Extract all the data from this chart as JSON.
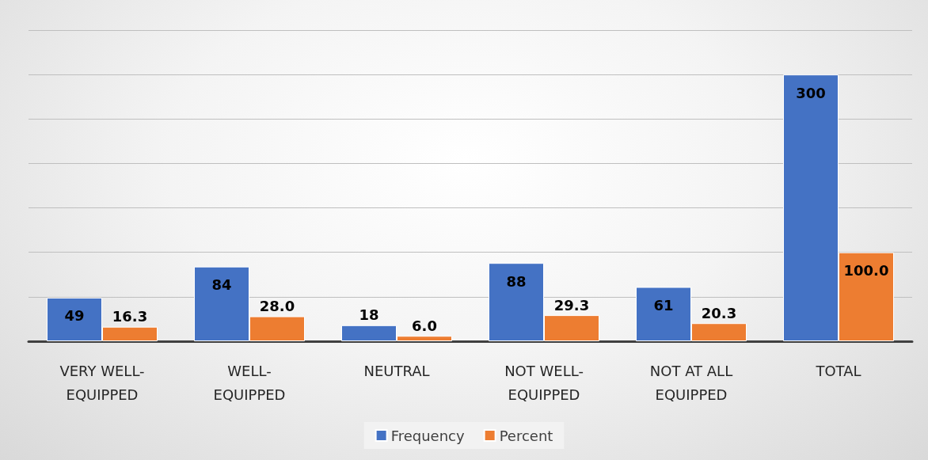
{
  "chart_data": {
    "type": "bar",
    "categories": [
      "VERY WELL-EQUIPPED",
      "WELL-EQUIPPED",
      "NEUTRAL",
      "NOT WELL-EQUIPPED",
      "NOT AT ALL EQUIPPED",
      "TOTAL"
    ],
    "series": [
      {
        "name": "Frequency",
        "color": "#4472c4",
        "values": [
          49,
          84,
          18,
          88,
          61,
          300
        ]
      },
      {
        "name": "Percent",
        "color": "#ed7d31",
        "values": [
          16.3,
          28.0,
          6.0,
          29.3,
          20.3,
          100.0
        ],
        "value_labels": [
          "16.3",
          "28.0",
          "6.0",
          "29.3",
          "20.3",
          "100.0"
        ]
      }
    ],
    "ylim": [
      0,
      350
    ],
    "yticks": [
      {
        "value": 0,
        "label": null
      },
      {
        "value": 50,
        "label": null
      },
      {
        "value": 100,
        "label": null
      },
      {
        "value": 150,
        "label": null
      },
      {
        "value": 200,
        "label": null
      },
      {
        "value": 250,
        "label": null
      },
      {
        "value": 300,
        "label": null
      },
      {
        "value": 350,
        "label": null
      }
    ],
    "tick_labels": "x",
    "grid": "y",
    "data_labels": true,
    "legend": "bottom"
  }
}
